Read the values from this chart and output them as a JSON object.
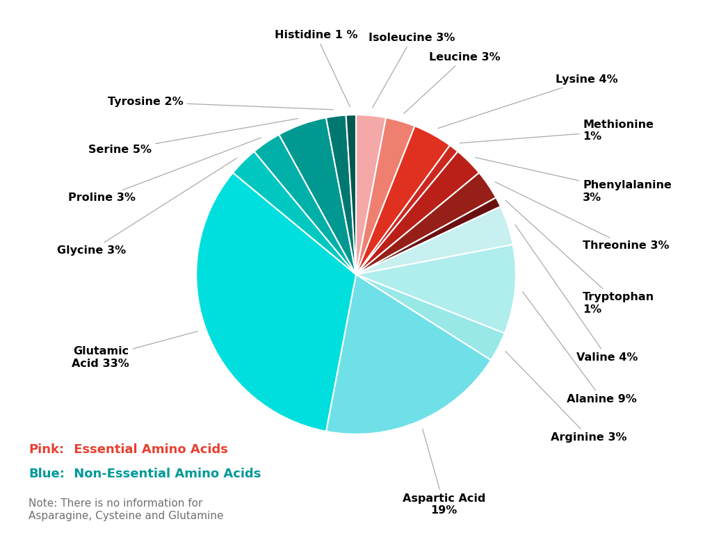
{
  "slices": [
    {
      "label": "Isoleucine 3%",
      "value": 3,
      "color": "#F4A8A8"
    },
    {
      "label": "Leucine 3%",
      "value": 3,
      "color": "#EF8070"
    },
    {
      "label": "Lysine 4%",
      "value": 4,
      "color": "#E03020"
    },
    {
      "label": "Methionine\n1%",
      "value": 1,
      "color": "#CC2820"
    },
    {
      "label": "Phenylalanine\n3%",
      "value": 3,
      "color": "#BB2018"
    },
    {
      "label": "Threonine 3%",
      "value": 3,
      "color": "#962018"
    },
    {
      "label": "Tryptophan\n1%",
      "value": 1,
      "color": "#6B1010"
    },
    {
      "label": "Valine 4%",
      "value": 4,
      "color": "#C8F0F0"
    },
    {
      "label": "Alanine 9%",
      "value": 9,
      "color": "#B0EDED"
    },
    {
      "label": "Arginine 3%",
      "value": 3,
      "color": "#98E8E8"
    },
    {
      "label": "Aspartic Acid\n19%",
      "value": 19,
      "color": "#70E0E8"
    },
    {
      "label": "Glutamic\nAcid 33%",
      "value": 33,
      "color": "#00DEDE"
    },
    {
      "label": "Glycine 3%",
      "value": 3,
      "color": "#00C8C0"
    },
    {
      "label": "Proline 3%",
      "value": 3,
      "color": "#00B0A8"
    },
    {
      "label": "Serine 5%",
      "value": 5,
      "color": "#009890"
    },
    {
      "label": "Tyrosine 2%",
      "value": 2,
      "color": "#007870"
    },
    {
      "label": "Histidine 1 %",
      "value": 1,
      "color": "#005850"
    }
  ],
  "background_color": "#FFFFFF",
  "legend_pink_label": "Pink:",
  "legend_pink_rest": " Essential Amino Acids",
  "legend_blue_label": "Blue:",
  "legend_blue_rest": " Non-Essential Amino Acids",
  "legend_note": "Note: There is no information for\nAsparagine, Cysteine and Glutamine",
  "pink_color": "#E84030",
  "blue_color": "#009898",
  "note_color": "#707070",
  "label_color_pink": "#E84030",
  "label_color_blue": "#009898"
}
